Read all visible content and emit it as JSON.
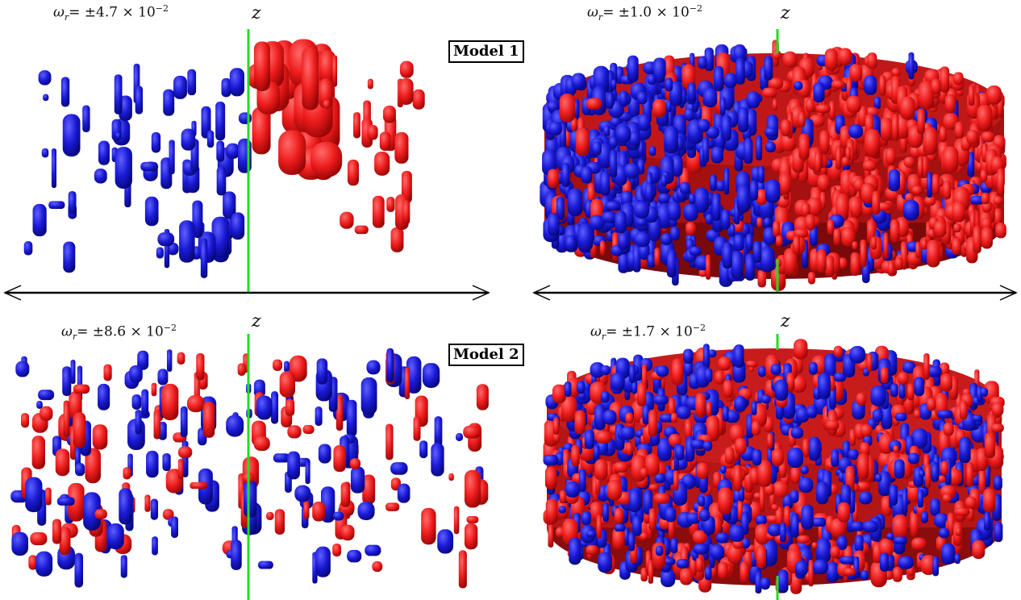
{
  "figure": {
    "models": [
      {
        "label": "Model 1",
        "panels": [
          {
            "omega_prefix": "= ±",
            "omega_mantissa": "4.7",
            "omega_exp": "−2",
            "z_label": "z"
          },
          {
            "omega_prefix": "= ±",
            "omega_mantissa": "1.0",
            "omega_exp": "−2",
            "z_label": "z"
          }
        ]
      },
      {
        "label": "Model 2",
        "panels": [
          {
            "omega_prefix": "= ±",
            "omega_mantissa": "8.6",
            "omega_exp": "−2",
            "z_label": "z"
          },
          {
            "omega_prefix": "= ±",
            "omega_mantissa": "1.7",
            "omega_exp": "−2",
            "z_label": "z"
          }
        ]
      }
    ],
    "omega_symbol": "ω",
    "omega_subscript": "r",
    "times": "× 10",
    "colors": {
      "positive": "#ee1c1c",
      "negative": "#1a1ad6",
      "axis": "#22dd22",
      "line": "#000000"
    }
  }
}
